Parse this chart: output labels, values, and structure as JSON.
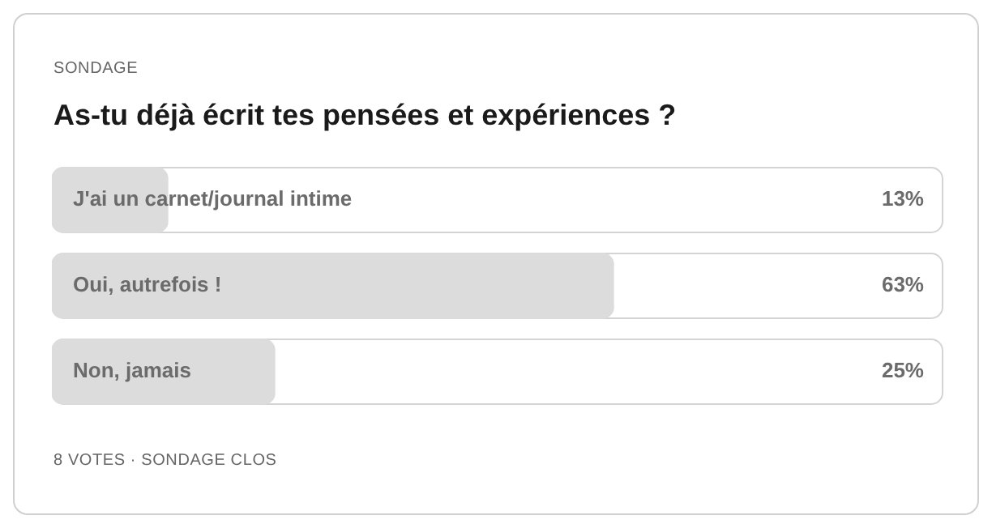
{
  "chart_data": {
    "type": "bar",
    "orientation": "horizontal",
    "subtitle": "SONDAGE",
    "title": "As-tu déjà écrit tes pensées et expériences ?",
    "categories": [
      "J'ai un carnet/journal intime",
      "Oui, autrefois !",
      "Non, jamais"
    ],
    "values": [
      13,
      63,
      25
    ],
    "value_labels": [
      "13%",
      "63%",
      "25%"
    ],
    "color": "#dcdcdc",
    "xlim": [
      0,
      100
    ],
    "annotations": [
      "8 VOTES · SONDAGE CLOS"
    ]
  }
}
